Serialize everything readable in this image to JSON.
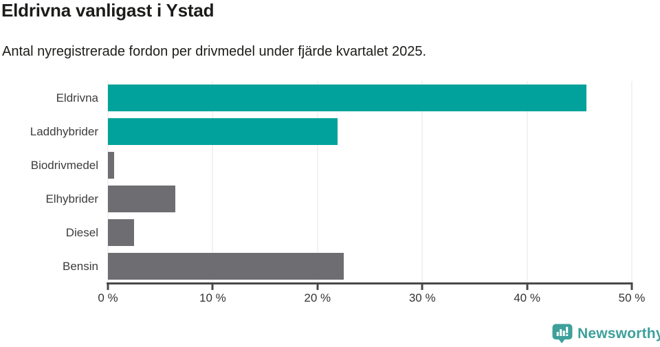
{
  "chart_data": {
    "type": "bar",
    "orientation": "horizontal",
    "title": "Eldrivna vanligast i Ystad",
    "subtitle": "Antal nyregistrerade fordon per drivmedel under fjärde kvartalet 2025.",
    "categories": [
      "Eldrivna",
      "Laddhybrider",
      "Biodrivmedel",
      "Elhybrider",
      "Diesel",
      "Bensin"
    ],
    "values": [
      45.7,
      21.9,
      0.6,
      6.4,
      2.5,
      22.5
    ],
    "value_unit": "%",
    "bar_colors": [
      "#00a29b",
      "#00a29b",
      "#6d6d72",
      "#6d6d72",
      "#6d6d72",
      "#6d6d72"
    ],
    "xlabel": "",
    "ylabel": "",
    "xlim": [
      0,
      50
    ],
    "x_ticks": [
      {
        "value": 0,
        "label": "0 %"
      },
      {
        "value": 10,
        "label": "10 %"
      },
      {
        "value": 20,
        "label": "20 %"
      },
      {
        "value": 30,
        "label": "30 %"
      },
      {
        "value": 40,
        "label": "40 %"
      },
      {
        "value": 50,
        "label": "50 %"
      }
    ],
    "grid": "vertical-gridlines-only",
    "legend": "none"
  },
  "footer": {
    "brand_name": "Newsworthy",
    "logo_icon": "bar-chart-speech-bubble-icon"
  },
  "colors": {
    "accent_teal": "#00a29b",
    "bar_gray": "#6d6d72",
    "logo_teal": "#3da09b",
    "grid_line": "#e4e4e4",
    "axis_line": "#48484a",
    "title_text": "#1c1c1a",
    "tick_text": "#333333"
  }
}
